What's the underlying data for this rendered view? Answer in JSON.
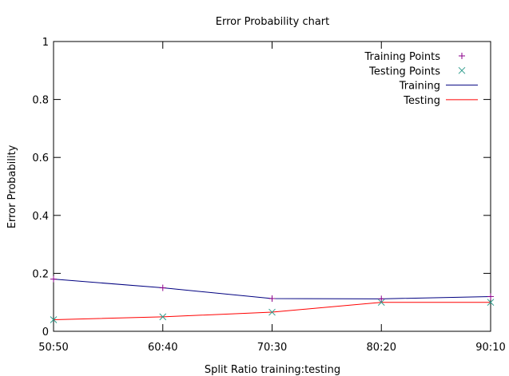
{
  "chart_data": {
    "type": "line",
    "title": "Error Probability chart",
    "xlabel": "Split Ratio training:testing",
    "ylabel": "Error Probability",
    "categories": [
      "50:50",
      "60:40",
      "70:30",
      "80:20",
      "90:10"
    ],
    "ylim": [
      0,
      1
    ],
    "yticks": [
      {
        "value": 0,
        "label": "0"
      },
      {
        "value": 0.2,
        "label": "0.2"
      },
      {
        "value": 0.4,
        "label": "0.4"
      },
      {
        "value": 0.6,
        "label": "0.6"
      },
      {
        "value": 0.8,
        "label": "0.8"
      },
      {
        "value": 1,
        "label": "1"
      }
    ],
    "grid": false,
    "legend_position": "top-right",
    "series": [
      {
        "name": "Training Points",
        "kind": "points",
        "marker": "plus",
        "color": "#8b008b",
        "values": [
          0.18,
          0.15,
          0.113,
          0.112,
          0.12
        ]
      },
      {
        "name": "Testing Points",
        "kind": "points",
        "marker": "cross",
        "color": "#2e9c8c",
        "values": [
          0.04,
          0.05,
          0.066,
          0.1,
          0.1
        ]
      },
      {
        "name": "Training",
        "kind": "line",
        "color": "#000080",
        "values": [
          0.18,
          0.15,
          0.113,
          0.112,
          0.12
        ]
      },
      {
        "name": "Testing",
        "kind": "line",
        "color": "#ff0000",
        "values": [
          0.04,
          0.05,
          0.066,
          0.1,
          0.1
        ]
      }
    ]
  }
}
